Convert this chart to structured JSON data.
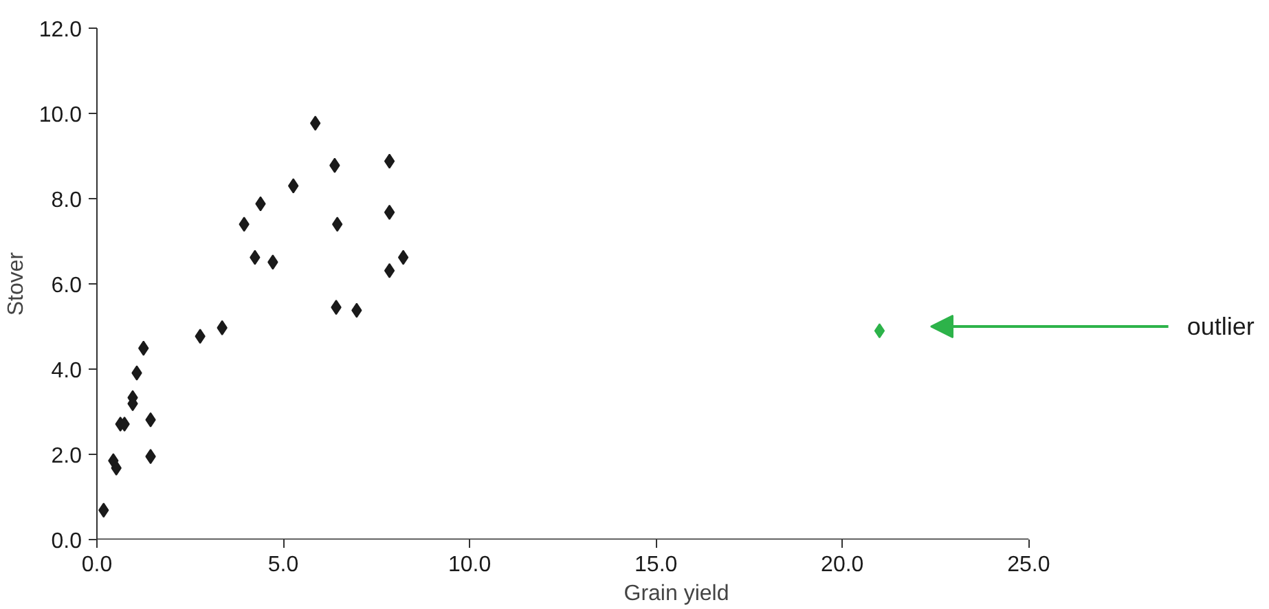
{
  "chart_data": {
    "type": "scatter",
    "xlabel": "Grain yield",
    "ylabel": "Stover",
    "marker": "diamond",
    "grid": false,
    "xlim": [
      0,
      25
    ],
    "ylim": [
      0,
      12
    ],
    "xticks": [
      {
        "value": 0,
        "label": "0.0"
      },
      {
        "value": 5,
        "label": "5.0"
      },
      {
        "value": 10,
        "label": "10.0"
      },
      {
        "value": 15,
        "label": "15.0"
      },
      {
        "value": 20,
        "label": "20.0"
      },
      {
        "value": 25,
        "label": "25.0"
      }
    ],
    "yticks": [
      {
        "value": 0,
        "label": "0.0"
      },
      {
        "value": 2,
        "label": "2.0"
      },
      {
        "value": 4,
        "label": "4.0"
      },
      {
        "value": 6,
        "label": "6.0"
      },
      {
        "value": 8,
        "label": "8.0"
      },
      {
        "value": 10,
        "label": "10.0"
      },
      {
        "value": 12,
        "label": "12.0"
      }
    ],
    "series": [
      {
        "color": "#1a1a1a",
        "x": [
          0.18,
          0.44,
          0.52,
          0.63,
          0.74,
          0.96,
          0.96,
          1.07,
          1.25,
          1.44,
          1.44,
          2.77,
          3.36,
          3.95,
          4.39,
          4.24,
          4.72,
          5.27,
          5.86,
          6.38,
          6.45,
          6.42,
          6.97,
          7.85,
          7.85,
          7.85,
          8.22
        ],
        "values": [
          0.69,
          1.85,
          1.68,
          2.71,
          2.71,
          3.33,
          3.19,
          3.91,
          4.49,
          2.81,
          1.95,
          4.77,
          4.97,
          7.4,
          7.88,
          6.62,
          6.51,
          8.3,
          9.77,
          8.78,
          7.4,
          5.45,
          5.38,
          6.31,
          7.68,
          8.88,
          6.62
        ]
      },
      {
        "color": "#2db34a",
        "x": [
          21.0
        ],
        "values": [
          4.9
        ]
      }
    ],
    "annotations": [
      "outlier"
    ]
  }
}
